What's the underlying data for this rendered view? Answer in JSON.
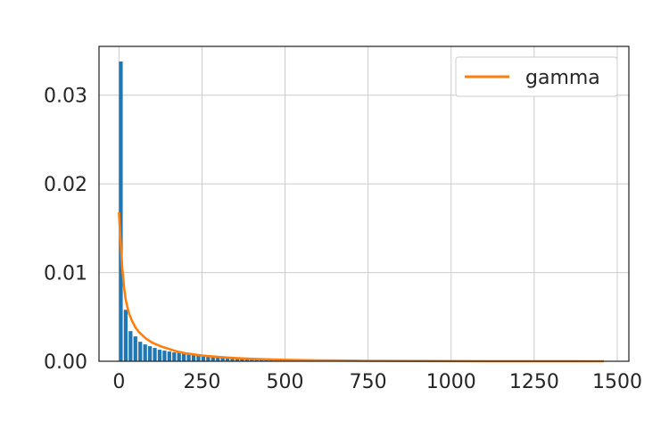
{
  "chart_data": {
    "type": "bar",
    "title": "",
    "xlabel": "",
    "ylabel": "",
    "xlim": [
      -60,
      1535
    ],
    "ylim": [
      0,
      0.0355
    ],
    "grid": true,
    "legend_position": "top-right",
    "x_ticks": [
      0,
      250,
      500,
      750,
      1000,
      1250,
      1500
    ],
    "x_tick_labels": [
      "0",
      "250",
      "500",
      "750",
      "1000",
      "1250",
      "1500"
    ],
    "y_ticks": [
      0.0,
      0.01,
      0.02,
      0.03
    ],
    "y_tick_labels": [
      "0.00",
      "0.01",
      "0.02",
      "0.03"
    ],
    "histogram": {
      "bin_width": 14.6,
      "bin_start": 0,
      "color": "#1f77b4",
      "densities": [
        0.0338,
        0.0058,
        0.0034,
        0.0028,
        0.0022,
        0.0019,
        0.0017,
        0.0015,
        0.0013,
        0.0012,
        0.0011,
        0.001,
        0.0011,
        0.0009,
        0.0008,
        0.0007,
        0.0006,
        0.00055,
        0.0005,
        0.00045,
        0.0004,
        0.00035,
        0.0003,
        0.00028,
        0.00025,
        0.00022,
        0.0002,
        0.00018,
        0.00016,
        0.00015,
        0.00013,
        0.00012,
        0.00011,
        0.0001,
        9e-05,
        8e-05,
        7e-05,
        6e-05,
        5e-05,
        5e-05,
        4e-05,
        4e-05,
        3e-05,
        3e-05,
        3e-05,
        2e-05,
        2e-05,
        2e-05,
        2e-05,
        2e-05,
        1e-05,
        1e-05,
        1e-05,
        1e-05,
        1e-05,
        1e-05,
        1e-05,
        1e-05,
        1e-05,
        1e-05
      ]
    },
    "series": [
      {
        "name": "gamma",
        "color": "#ff7f0e",
        "x": [
          0,
          5,
          10,
          15,
          20,
          30,
          40,
          50,
          60,
          80,
          100,
          125,
          150,
          175,
          200,
          250,
          300,
          350,
          400,
          500,
          600,
          750,
          900,
          1000,
          1100,
          1250,
          1350,
          1460
        ],
        "y": [
          0.0168,
          0.0135,
          0.0105,
          0.0085,
          0.007,
          0.0054,
          0.0045,
          0.0038,
          0.0033,
          0.0026,
          0.0021,
          0.0017,
          0.0014,
          0.0011,
          0.0009,
          0.00065,
          0.00048,
          0.00036,
          0.00027,
          0.00016,
          0.0001,
          5e-05,
          3e-05,
          2e-05,
          1e-05,
          1e-05,
          1e-05,
          0.0
        ]
      }
    ]
  }
}
